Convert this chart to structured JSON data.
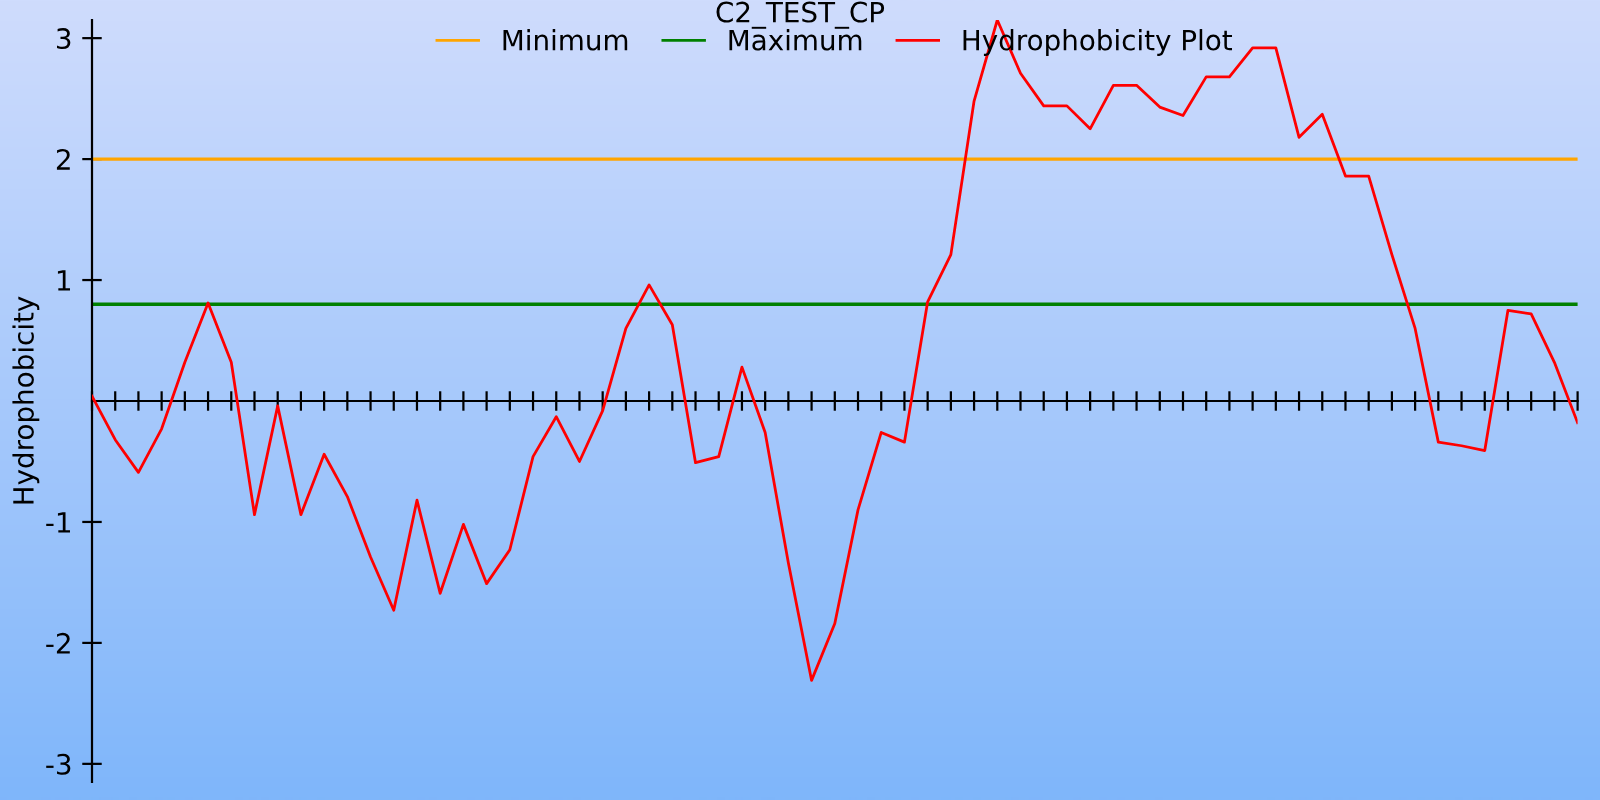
{
  "chart_data": {
    "type": "line",
    "title": "C2_TEST_CP",
    "ylabel": "Hydrophobicity",
    "categories": [
      null,
      null,
      null,
      null,
      null,
      null,
      null,
      null,
      null,
      null,
      null,
      null,
      null,
      null,
      null,
      null,
      null,
      null,
      null,
      null,
      null,
      null,
      null,
      null,
      null,
      null,
      null,
      null,
      null,
      null,
      null,
      null,
      null,
      null,
      null,
      null,
      null,
      null,
      null,
      null,
      null,
      null,
      null,
      null,
      null,
      null,
      null,
      null,
      null,
      null,
      null,
      null,
      null,
      null,
      null,
      null,
      null,
      null,
      null,
      null,
      null,
      null,
      null,
      null,
      null
    ],
    "series": [
      {
        "name": "Hydrophobicity Plot",
        "color": "#ff0000",
        "values": [
          0.04,
          -0.32,
          -0.59,
          -0.23,
          0.32,
          0.81,
          0.32,
          -0.94,
          -0.04,
          -0.94,
          -0.44,
          -0.79,
          -1.29,
          -1.73,
          -0.82,
          -1.59,
          -1.02,
          -1.51,
          -1.23,
          -0.46,
          -0.13,
          -0.5,
          -0.08,
          0.6,
          0.96,
          0.63,
          -0.51,
          -0.46,
          0.28,
          -0.26,
          -1.34,
          -2.31,
          -1.84,
          -0.9,
          -0.26,
          -0.34,
          0.82,
          1.21,
          2.48,
          3.15,
          2.71,
          2.44,
          2.44,
          2.25,
          2.61,
          2.61,
          2.43,
          2.36,
          2.68,
          2.68,
          2.92,
          2.92,
          2.18,
          2.37,
          1.86,
          1.86,
          1.21,
          0.6,
          -0.34,
          -0.37,
          -0.41,
          0.75,
          0.72,
          0.32,
          -0.18
        ]
      }
    ],
    "ref_lines": [
      {
        "axis": "y",
        "value": 2,
        "label": "Minimum",
        "color": "#ffa500"
      },
      {
        "axis": "y",
        "value": 0.8,
        "label": "Maximum",
        "color": "#008000"
      }
    ],
    "ylim": [
      -3.15,
      3.15
    ],
    "yticks": [
      -3,
      -2,
      -1,
      1,
      2,
      3
    ],
    "grid": false,
    "legend": "top",
    "marker": "none",
    "line_style": "solid"
  }
}
